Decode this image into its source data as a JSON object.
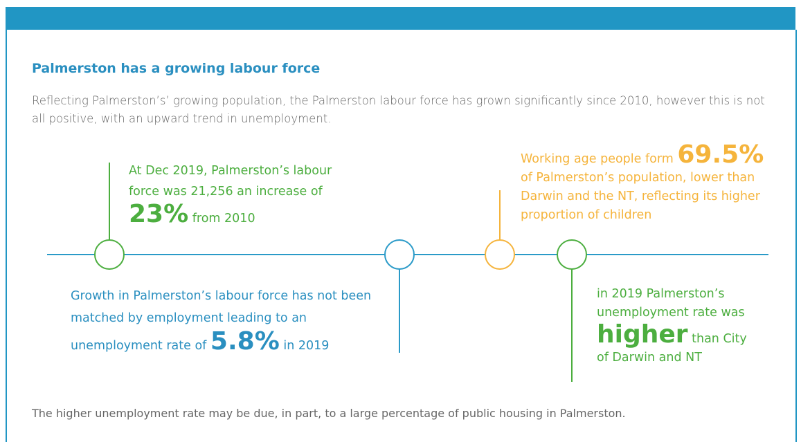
{
  "header": {
    "title": "Palmerston has a growing labour force",
    "intro": "Reflecting Palmerston’s’ growing population, the Palmerston labour force has grown significantly since 2010, however this is not all positive, with an upward trend in unemployment."
  },
  "callouts": [
    {
      "text_before": "At Dec 2019, Palmerston’s labour force was 21,256 an increase of",
      "highlight": "23%",
      "text_after": "from 2010"
    },
    {
      "text_before": "Growth in Palmerston’s labour force has not been matched by employment leading to an unemployment rate of",
      "highlight": "5.8%",
      "text_after": "in 2019"
    },
    {
      "text_before": "Working age people form",
      "highlight": "69.5%",
      "text_after": "of Palmerston’s population, lower than Darwin and the NT, reflecting its higher proportion of children"
    },
    {
      "text_before": "in 2019 Palmerston’s unemployment rate was",
      "highlight": "higher",
      "text_after": "than City of Darwin and NT"
    }
  ],
  "footer": "The higher unemployment rate may be due, in part, to a large percentage of public housing in Palmerston."
}
